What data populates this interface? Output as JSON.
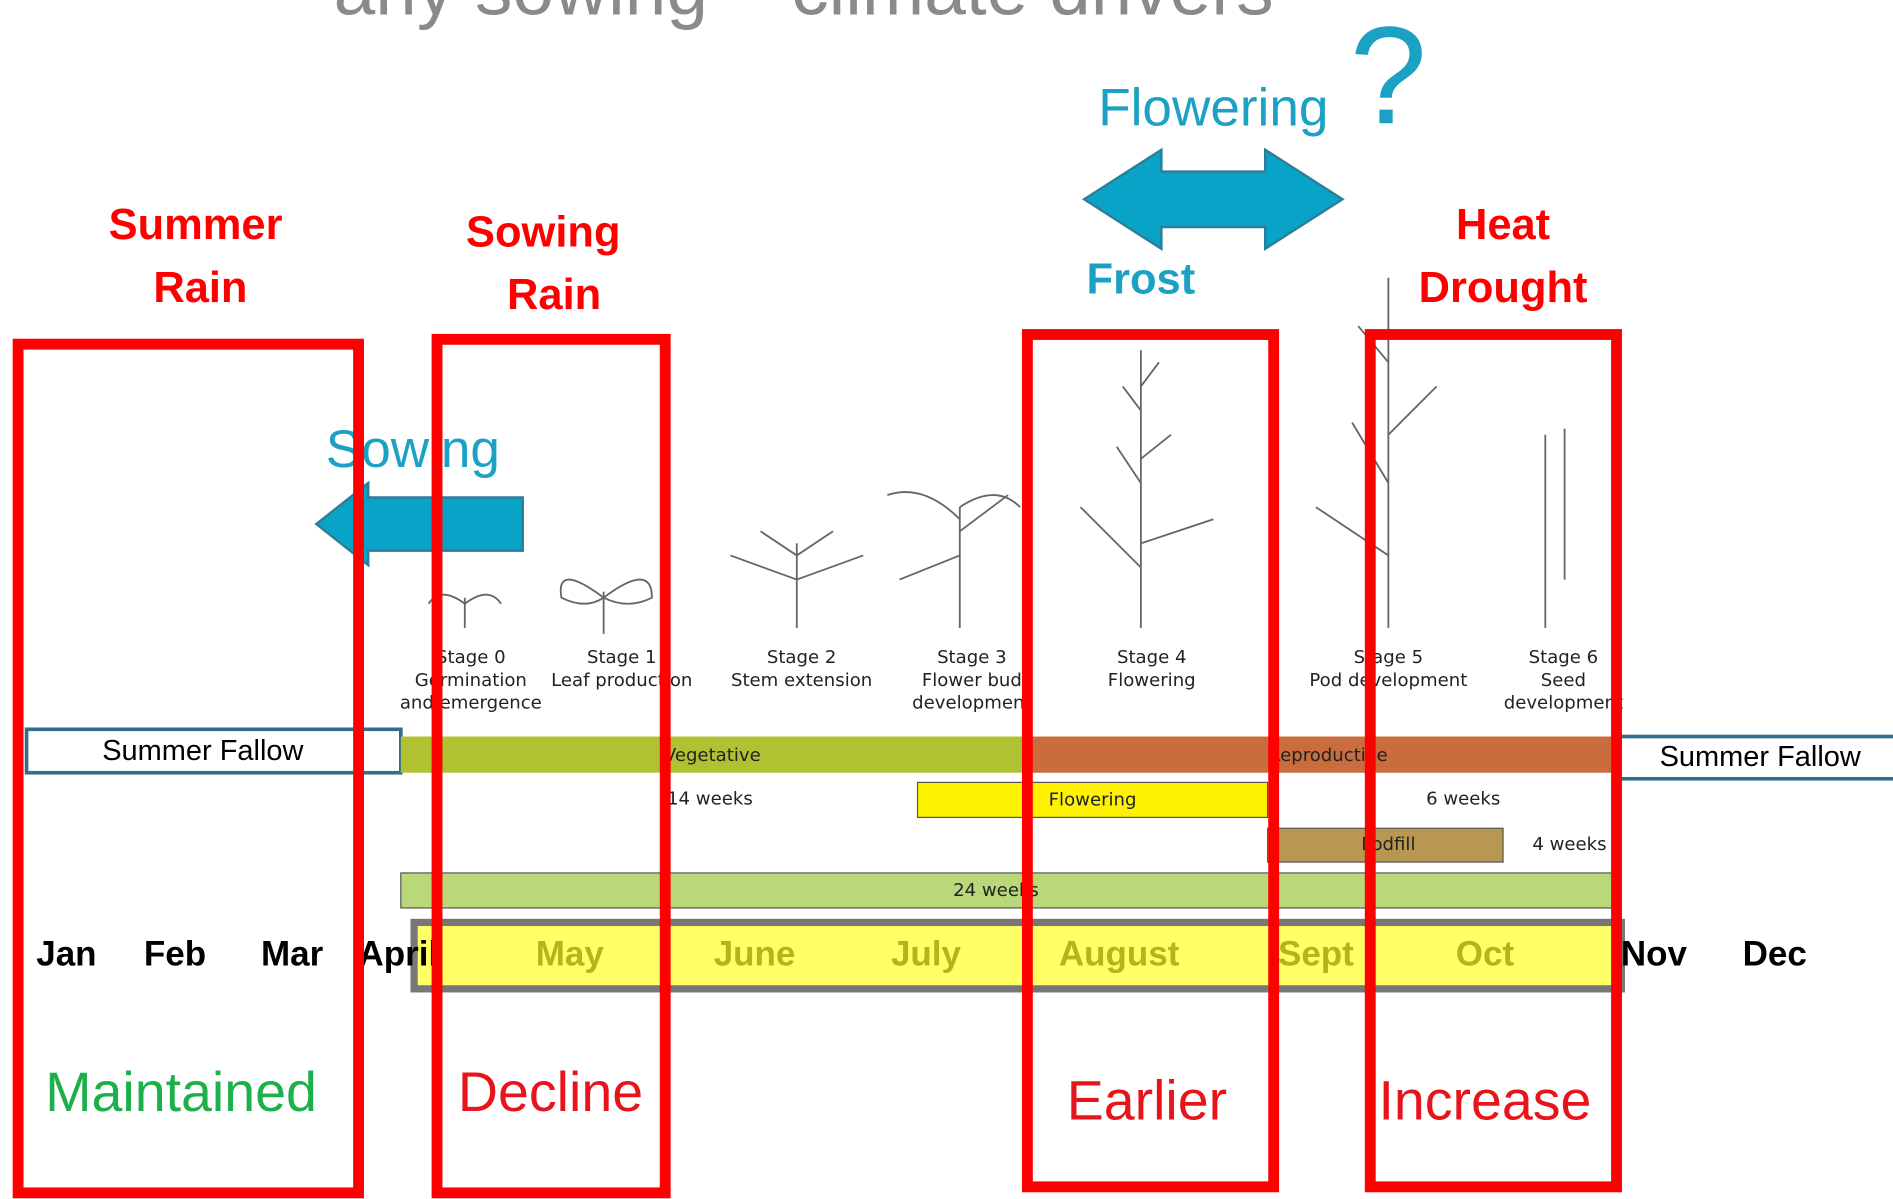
{
  "title": "arly sowing – climate drivers",
  "question_mark": "?",
  "flowering_label": "Flowering",
  "frost_label": "Frost",
  "sowing_label": "Sowing",
  "driver_labels": {
    "summer_rain": [
      "Summer",
      "Rain"
    ],
    "sowing_rain": [
      "Sowing",
      "Rain"
    ],
    "heat_drought": [
      "Heat",
      "Drought"
    ]
  },
  "stages": [
    [
      "Stage 0",
      "Germination",
      "and emergence"
    ],
    [
      "Stage 1",
      "Leaf production"
    ],
    [
      "Stage 2",
      "Stem extension"
    ],
    [
      "Stage 3",
      "Flower bud",
      "development"
    ],
    [
      "Stage 4",
      "Flowering"
    ],
    [
      "Stage 5",
      "Pod development"
    ],
    [
      "Stage 6",
      "Seed",
      "development"
    ]
  ],
  "fallow": [
    "Summer Fallow",
    "Summer Fallow"
  ],
  "bars": {
    "vegetative": "Vegetative",
    "reproductive": "Reproductive",
    "weeks_14": "14 weeks",
    "flowering": "Flowering",
    "weeks_6": "6 weeks",
    "podfill": "Podfill",
    "weeks_4": "4 weeks",
    "weeks_24": "24 weeks"
  },
  "months": [
    "Jan",
    "Feb",
    "Mar",
    "April",
    "May",
    "June",
    "July",
    "August",
    "Sept",
    "Oct",
    "Nov",
    "Dec"
  ],
  "outcomes": [
    "Maintained",
    "Decline",
    "Earlier",
    "Increase"
  ]
}
